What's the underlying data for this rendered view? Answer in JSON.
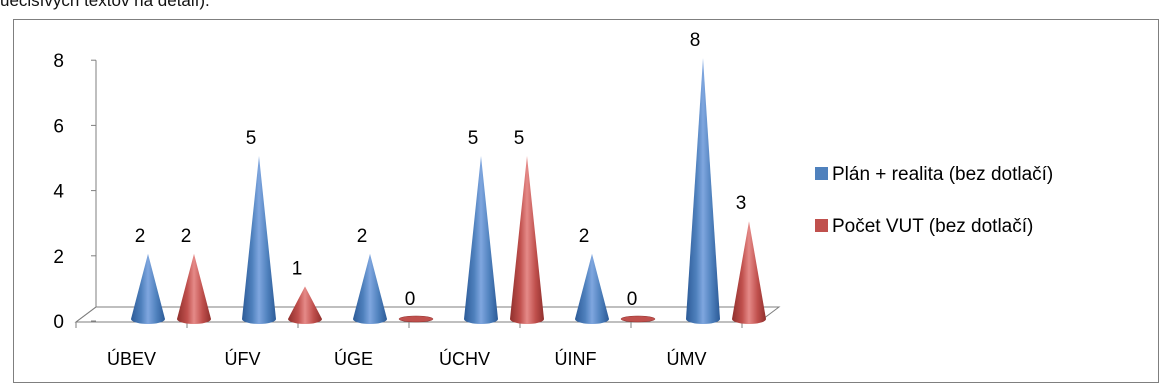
{
  "header_fragment": "uecisívých textov na détalí).",
  "colors": {
    "series1_light": "#7fa6df",
    "series1": "#4f81bd",
    "series1_dark": "#2c5a97",
    "series2_light": "#e58a88",
    "series2": "#c0504d",
    "series2_dark": "#8f2f2c",
    "axis": "#7f7f7f",
    "text": "#000000"
  },
  "chart_data": {
    "type": "bar",
    "bar_shape": "3d-cone",
    "categories": [
      "ÚBEV",
      "ÚFV",
      "ÚGE",
      "ÚCHV",
      "ÚINF",
      "ÚMV"
    ],
    "series": [
      {
        "name": "Plán + realita (bez dotlačí)",
        "values": [
          2,
          5,
          2,
          5,
          2,
          8
        ]
      },
      {
        "name": "Počet VUT (bez dotlačí)",
        "values": [
          2,
          1,
          0,
          5,
          0,
          3
        ]
      }
    ],
    "y_ticks": [
      "0",
      "2",
      "4",
      "6",
      "8"
    ],
    "ylim": [
      0,
      8
    ],
    "data_labels": true,
    "legend_position": "right",
    "grid": false
  }
}
